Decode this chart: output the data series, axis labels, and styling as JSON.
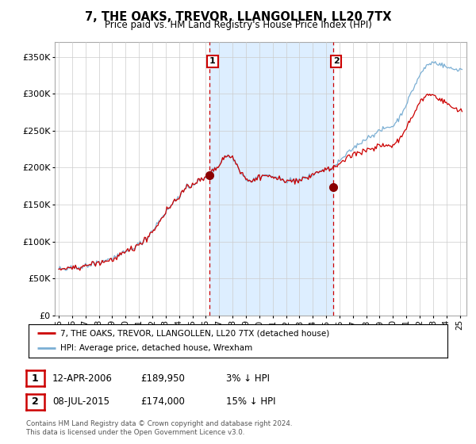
{
  "title": "7, THE OAKS, TREVOR, LLANGOLLEN, LL20 7TX",
  "subtitle": "Price paid vs. HM Land Registry's House Price Index (HPI)",
  "ylabel_ticks": [
    "£0",
    "£50K",
    "£100K",
    "£150K",
    "£200K",
    "£250K",
    "£300K",
    "£350K"
  ],
  "ytick_values": [
    0,
    50000,
    100000,
    150000,
    200000,
    250000,
    300000,
    350000
  ],
  "ylim": [
    0,
    370000
  ],
  "xlim_start": 1994.7,
  "xlim_end": 2025.5,
  "hpi_color": "#7bafd4",
  "price_color": "#cc0000",
  "shading_color": "#ddeeff",
  "marker1_x": 2006.28,
  "marker1_y": 189950,
  "marker2_x": 2015.52,
  "marker2_y": 174000,
  "marker1_label": "1",
  "marker2_label": "2",
  "vline1_x": 2006.28,
  "vline2_x": 2015.52,
  "legend_line1": "7, THE OAKS, TREVOR, LLANGOLLEN, LL20 7TX (detached house)",
  "legend_line2": "HPI: Average price, detached house, Wrexham",
  "table_row1": [
    "1",
    "12-APR-2006",
    "£189,950",
    "3% ↓ HPI"
  ],
  "table_row2": [
    "2",
    "08-JUL-2015",
    "£174,000",
    "15% ↓ HPI"
  ],
  "footnote1": "Contains HM Land Registry data © Crown copyright and database right 2024.",
  "footnote2": "This data is licensed under the Open Government Licence v3.0.",
  "background_color": "#ffffff",
  "grid_color": "#cccccc",
  "title_fontsize": 10.5,
  "subtitle_fontsize": 8.5
}
